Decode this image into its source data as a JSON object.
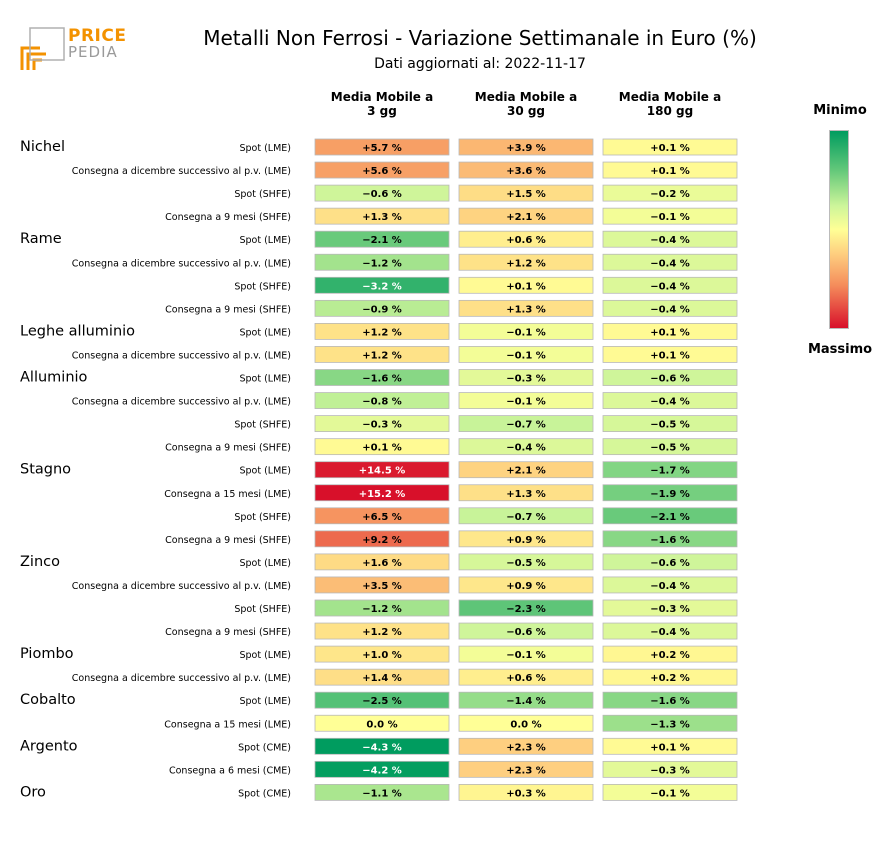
{
  "header": {
    "logo_line1": "PRICE",
    "logo_line2": "PEDIA",
    "title": "Metalli Non Ferrosi - Variazione Settimanale in Euro (%)",
    "subtitle": "Dati aggiornati al: 2022-11-17"
  },
  "columns": [
    {
      "label_line1": "Media Mobile a",
      "label_line2": "3 gg"
    },
    {
      "label_line1": "Media Mobile a",
      "label_line2": "30 gg"
    },
    {
      "label_line1": "Media Mobile a",
      "label_line2": "180 gg"
    }
  ],
  "legend": {
    "min_label": "Minimo",
    "max_label": "Massimo"
  },
  "colors": {
    "min": "#009c5f",
    "mid": "#ffff96",
    "max": "#d8102a"
  },
  "chart_data": {
    "type": "heatmap",
    "title": "Metalli Non Ferrosi - Variazione Settimanale in Euro (%)",
    "value_unit": "%",
    "groups": [
      {
        "name": "Nichel",
        "rows": [
          {
            "label": "Spot (LME)",
            "values": [
              5.7,
              3.9,
              0.1
            ]
          },
          {
            "label": "Consegna a dicembre successivo al p.v. (LME)",
            "values": [
              5.6,
              3.6,
              0.1
            ]
          },
          {
            "label": "Spot (SHFE)",
            "values": [
              -0.6,
              1.5,
              -0.2
            ]
          },
          {
            "label": "Consegna a 9 mesi (SHFE)",
            "values": [
              1.3,
              2.1,
              -0.1
            ]
          }
        ]
      },
      {
        "name": "Rame",
        "rows": [
          {
            "label": "Spot (LME)",
            "values": [
              -2.1,
              0.6,
              -0.4
            ]
          },
          {
            "label": "Consegna a dicembre successivo al p.v. (LME)",
            "values": [
              -1.2,
              1.2,
              -0.4
            ]
          },
          {
            "label": "Spot (SHFE)",
            "values": [
              -3.2,
              0.1,
              -0.4
            ]
          },
          {
            "label": "Consegna a 9 mesi (SHFE)",
            "values": [
              -0.9,
              1.3,
              -0.4
            ]
          }
        ]
      },
      {
        "name": "Leghe alluminio",
        "rows": [
          {
            "label": "Spot (LME)",
            "values": [
              1.2,
              -0.1,
              0.1
            ]
          },
          {
            "label": "Consegna a dicembre successivo al p.v. (LME)",
            "values": [
              1.2,
              -0.1,
              0.1
            ]
          }
        ]
      },
      {
        "name": "Alluminio",
        "rows": [
          {
            "label": "Spot (LME)",
            "values": [
              -1.6,
              -0.3,
              -0.6
            ]
          },
          {
            "label": "Consegna a dicembre successivo al p.v. (LME)",
            "values": [
              -0.8,
              -0.1,
              -0.4
            ]
          },
          {
            "label": "Spot (SHFE)",
            "values": [
              -0.3,
              -0.7,
              -0.5
            ]
          },
          {
            "label": "Consegna a 9 mesi (SHFE)",
            "values": [
              0.1,
              -0.4,
              -0.5
            ]
          }
        ]
      },
      {
        "name": "Stagno",
        "rows": [
          {
            "label": "Spot (LME)",
            "values": [
              14.5,
              2.1,
              -1.7
            ]
          },
          {
            "label": "Consegna a 15 mesi (LME)",
            "values": [
              15.2,
              1.3,
              -1.9
            ]
          },
          {
            "label": "Spot (SHFE)",
            "values": [
              6.5,
              -0.7,
              -2.1
            ]
          },
          {
            "label": "Consegna a 9 mesi (SHFE)",
            "values": [
              9.2,
              0.9,
              -1.6
            ]
          }
        ]
      },
      {
        "name": "Zinco",
        "rows": [
          {
            "label": "Spot (LME)",
            "values": [
              1.6,
              -0.5,
              -0.6
            ]
          },
          {
            "label": "Consegna a dicembre successivo al p.v. (LME)",
            "values": [
              3.5,
              0.9,
              -0.4
            ]
          },
          {
            "label": "Spot (SHFE)",
            "values": [
              -1.2,
              -2.3,
              -0.3
            ]
          },
          {
            "label": "Consegna a 9 mesi (SHFE)",
            "values": [
              1.2,
              -0.6,
              -0.4
            ]
          }
        ]
      },
      {
        "name": "Piombo",
        "rows": [
          {
            "label": "Spot (LME)",
            "values": [
              1.0,
              -0.1,
              0.2
            ]
          },
          {
            "label": "Consegna a dicembre successivo al p.v. (LME)",
            "values": [
              1.4,
              0.6,
              0.2
            ]
          }
        ]
      },
      {
        "name": "Cobalto",
        "rows": [
          {
            "label": "Spot (LME)",
            "values": [
              -2.5,
              -1.4,
              -1.6
            ]
          },
          {
            "label": "Consegna a 15 mesi (LME)",
            "values": [
              0.0,
              0.0,
              -1.3
            ]
          }
        ]
      },
      {
        "name": "Argento",
        "rows": [
          {
            "label": "Spot (CME)",
            "values": [
              -4.3,
              2.3,
              0.1
            ]
          },
          {
            "label": "Consegna a 6 mesi (CME)",
            "values": [
              -4.2,
              2.3,
              -0.3
            ]
          }
        ]
      },
      {
        "name": "Oro",
        "rows": [
          {
            "label": "Spot (CME)",
            "values": [
              -1.1,
              0.3,
              -0.1
            ]
          }
        ]
      }
    ]
  }
}
